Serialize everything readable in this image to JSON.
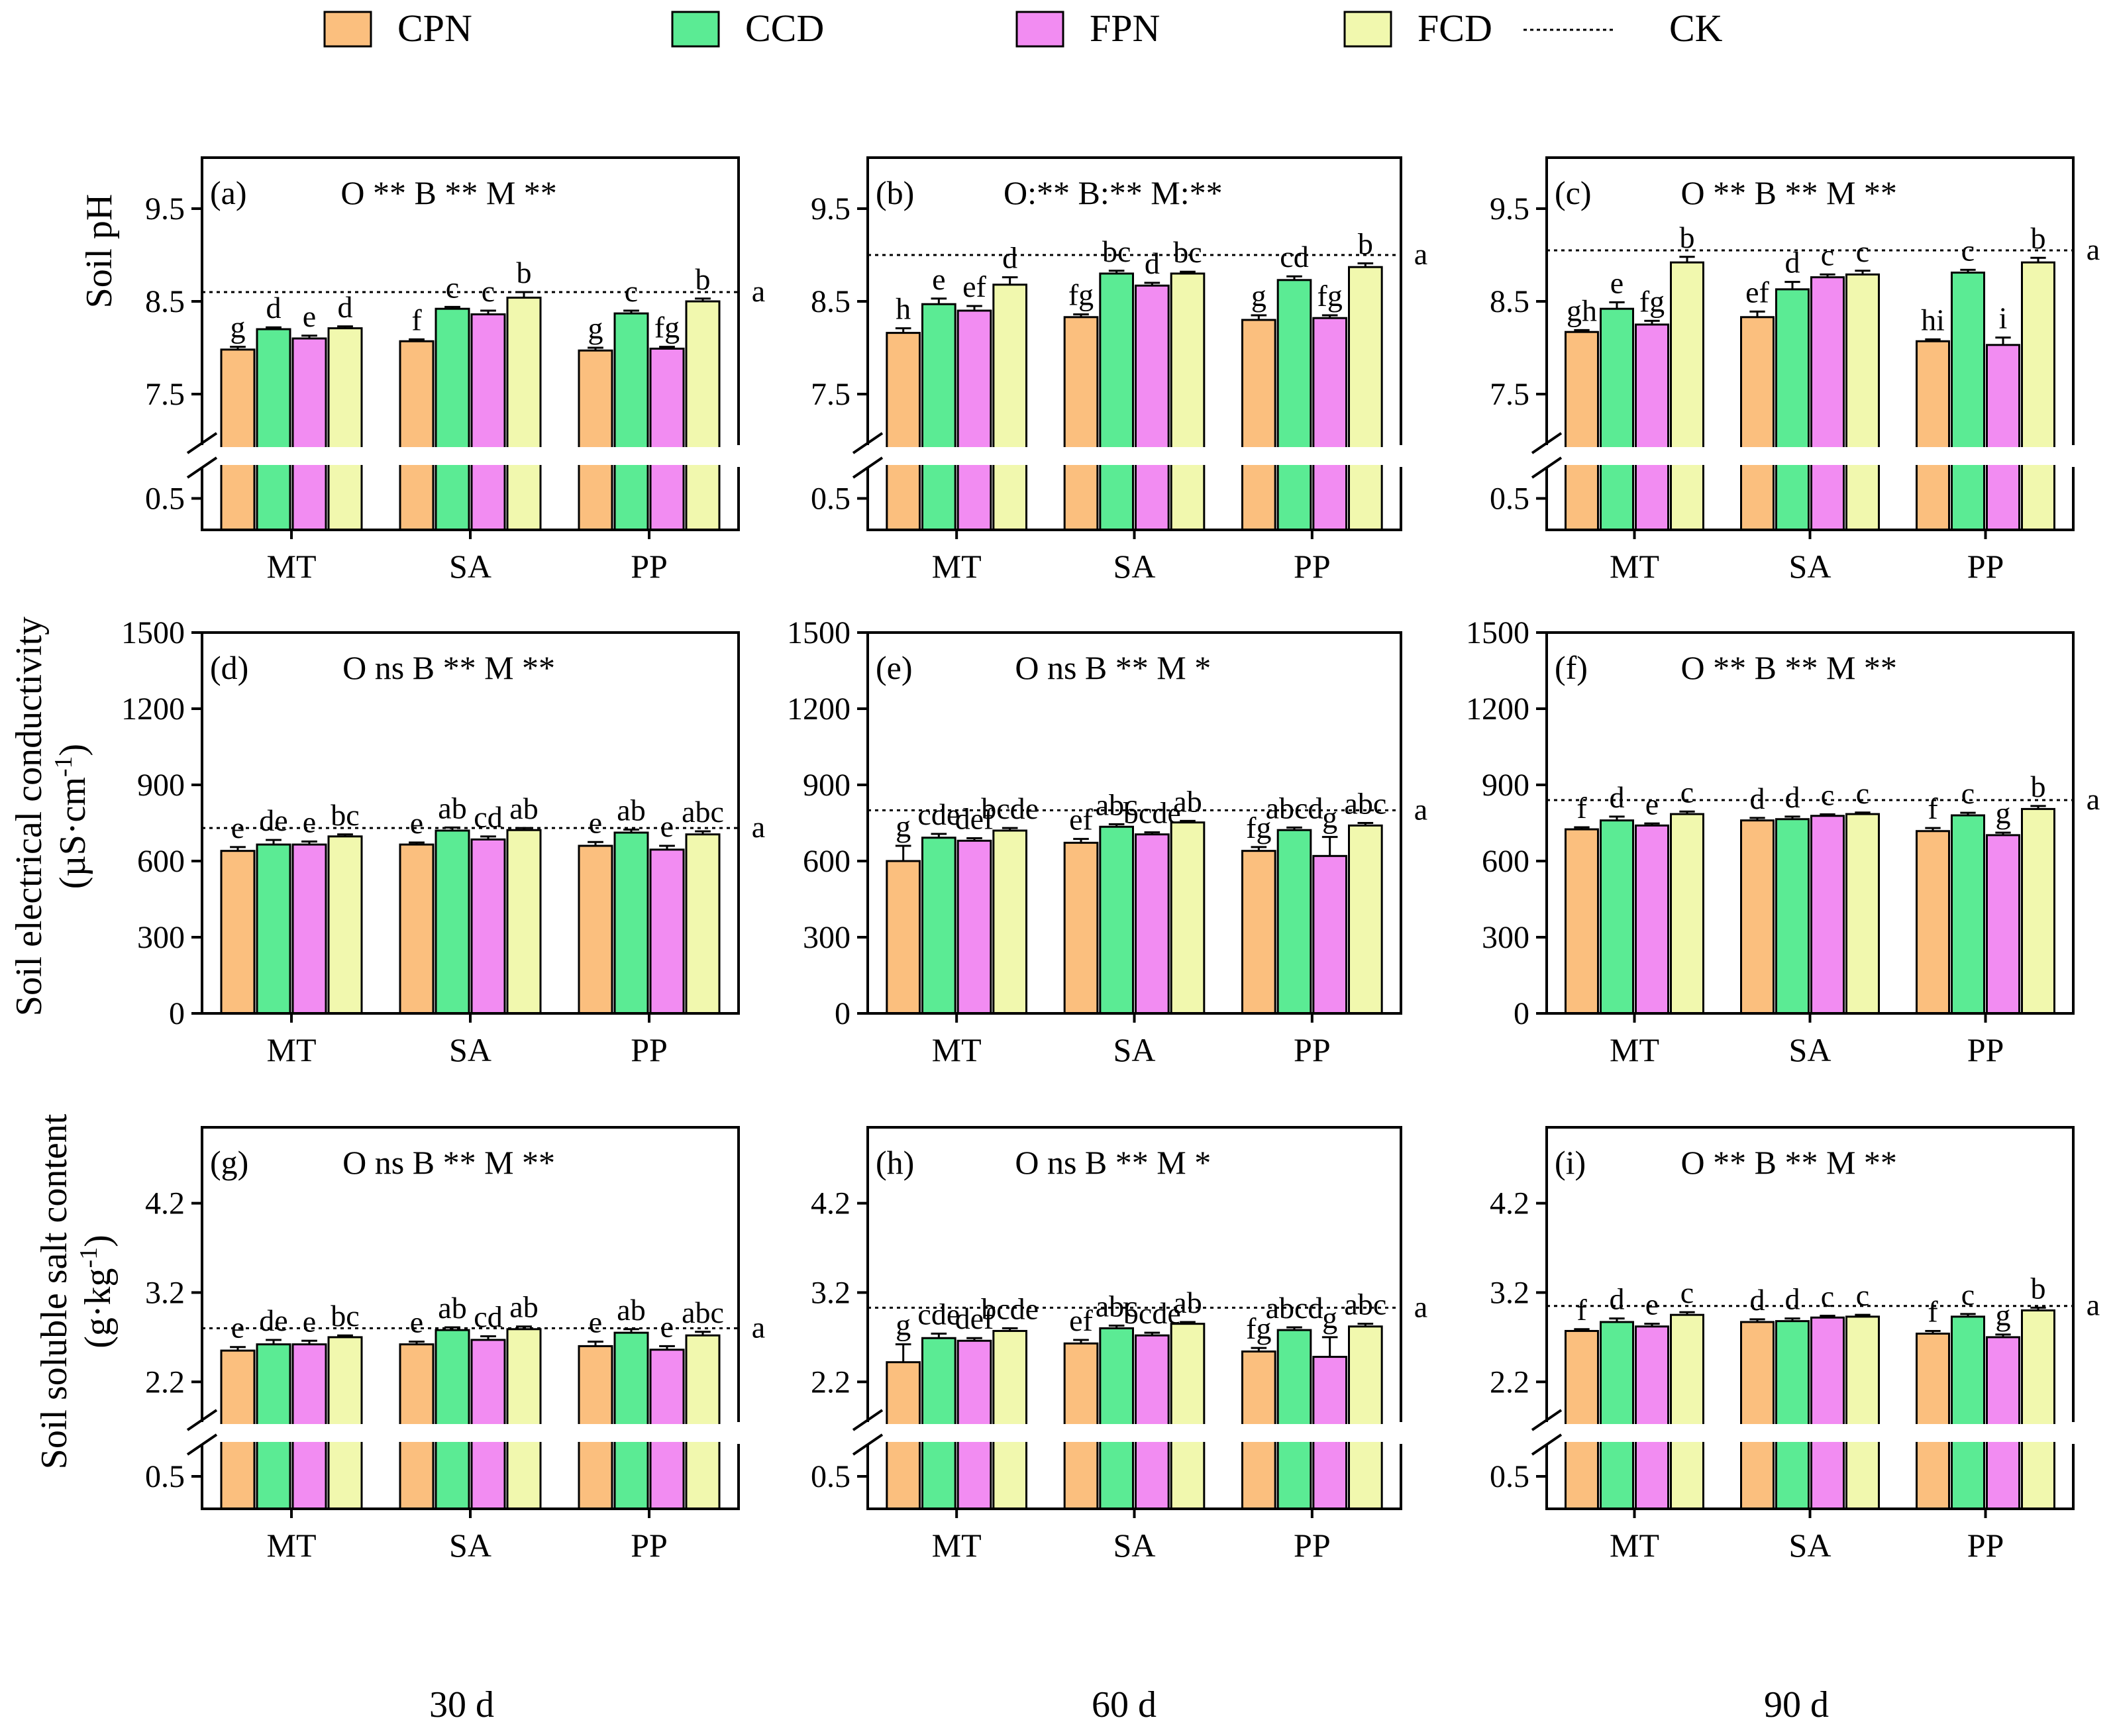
{
  "legend": {
    "items": [
      {
        "label": "CPN",
        "color": "#FBBF7E",
        "kind": "box"
      },
      {
        "label": "CCD",
        "color": "#5BEB94",
        "kind": "box"
      },
      {
        "label": "FPN",
        "color": "#F28CF2",
        "kind": "box"
      },
      {
        "label": "FCD",
        "color": "#F1F8AE",
        "kind": "box"
      },
      {
        "label": "CK",
        "color": "#000000",
        "kind": "dotted-line"
      }
    ]
  },
  "time_labels": [
    "30 d",
    "60 d",
    "90 d"
  ],
  "row_ylabels": [
    {
      "line1": "Soil pH",
      "line2": ""
    },
    {
      "line1": "Soil electrical conductivity",
      "line2": "(µS·cm",
      "sup": "-1",
      "tail": ")"
    },
    {
      "line1": "Soil soluble salt content",
      "line2": "(g·kg",
      "sup": "-1",
      "tail": ")"
    }
  ],
  "chart_data": [
    {
      "type": "bar",
      "panel": "(a)",
      "row": 0,
      "col": 0,
      "significance": "O ** B ** M **",
      "categories": [
        "MT",
        "SA",
        "PP"
      ],
      "series": [
        {
          "name": "CPN",
          "values": [
            7.98,
            8.07,
            7.97
          ],
          "errors": [
            0.03,
            0.02,
            0.03
          ],
          "letters": [
            "g",
            "f",
            "g"
          ]
        },
        {
          "name": "CCD",
          "values": [
            8.2,
            8.42,
            8.37
          ],
          "errors": [
            0.02,
            0.02,
            0.03
          ],
          "letters": [
            "d",
            "c",
            "c"
          ]
        },
        {
          "name": "FPN",
          "values": [
            8.1,
            8.36,
            7.99
          ],
          "errors": [
            0.03,
            0.04,
            0.02
          ],
          "letters": [
            "e",
            "c",
            "fg"
          ]
        },
        {
          "name": "FCD",
          "values": [
            8.21,
            8.54,
            8.5
          ],
          "errors": [
            0.02,
            0.06,
            0.03
          ],
          "letters": [
            "d",
            "b",
            "b"
          ]
        }
      ],
      "ck": {
        "value": 8.6,
        "letter": "a"
      },
      "axis": {
        "lower_range": [
          0,
          1
        ],
        "lower_ticks": [
          0.5
        ],
        "upper_range": [
          6.95,
          10.05
        ],
        "upper_ticks": [
          7.5,
          8.5,
          9.5
        ]
      }
    },
    {
      "type": "bar",
      "panel": "(b)",
      "row": 0,
      "col": 1,
      "significance": "O:** B:** M:**",
      "categories": [
        "MT",
        "SA",
        "PP"
      ],
      "series": [
        {
          "name": "CPN",
          "values": [
            8.16,
            8.33,
            8.3
          ],
          "errors": [
            0.05,
            0.03,
            0.05
          ],
          "letters": [
            "h",
            "fg",
            "g"
          ]
        },
        {
          "name": "CCD",
          "values": [
            8.47,
            8.8,
            8.73
          ],
          "errors": [
            0.06,
            0.03,
            0.04
          ],
          "letters": [
            "e",
            "bc",
            "cd"
          ]
        },
        {
          "name": "FPN",
          "values": [
            8.4,
            8.67,
            8.32
          ],
          "errors": [
            0.05,
            0.03,
            0.03
          ],
          "letters": [
            "ef",
            "d",
            "fg"
          ]
        },
        {
          "name": "FCD",
          "values": [
            8.68,
            8.8,
            8.87
          ],
          "errors": [
            0.08,
            0.02,
            0.04
          ],
          "letters": [
            "d",
            "bc",
            "b"
          ]
        }
      ],
      "ck": {
        "value": 9.0,
        "letter": "a"
      },
      "axis": {
        "lower_range": [
          0,
          1
        ],
        "lower_ticks": [
          0.5
        ],
        "upper_range": [
          6.95,
          10.05
        ],
        "upper_ticks": [
          7.5,
          8.5,
          9.5
        ]
      }
    },
    {
      "type": "bar",
      "panel": "(c)",
      "row": 0,
      "col": 2,
      "significance": "O ** B ** M **",
      "categories": [
        "MT",
        "SA",
        "PP"
      ],
      "series": [
        {
          "name": "CPN",
          "values": [
            8.17,
            8.33,
            8.07
          ],
          "errors": [
            0.02,
            0.06,
            0.02
          ],
          "letters": [
            "gh",
            "ef",
            "hi"
          ]
        },
        {
          "name": "CCD",
          "values": [
            8.42,
            8.63,
            8.81
          ],
          "errors": [
            0.07,
            0.08,
            0.03
          ],
          "letters": [
            "e",
            "d",
            "c"
          ]
        },
        {
          "name": "FPN",
          "values": [
            8.25,
            8.76,
            8.03
          ],
          "errors": [
            0.04,
            0.03,
            0.08
          ],
          "letters": [
            "fg",
            "c",
            "i"
          ]
        },
        {
          "name": "FCD",
          "values": [
            8.92,
            8.79,
            8.92
          ],
          "errors": [
            0.06,
            0.04,
            0.05
          ],
          "letters": [
            "b",
            "c",
            "b"
          ]
        }
      ],
      "ck": {
        "value": 9.05,
        "letter": "a"
      },
      "axis": {
        "lower_range": [
          0,
          1
        ],
        "lower_ticks": [
          0.5
        ],
        "upper_range": [
          6.95,
          10.05
        ],
        "upper_ticks": [
          7.5,
          8.5,
          9.5
        ]
      }
    },
    {
      "type": "bar",
      "panel": "(d)",
      "row": 1,
      "col": 0,
      "significance": "O ns  B **  M **",
      "categories": [
        "MT",
        "SA",
        "PP"
      ],
      "series": [
        {
          "name": "CPN",
          "values": [
            640,
            665,
            660
          ],
          "errors": [
            15,
            8,
            15
          ],
          "letters": [
            "e",
            "e",
            "e"
          ]
        },
        {
          "name": "CCD",
          "values": [
            665,
            720,
            712
          ],
          "errors": [
            18,
            12,
            12
          ],
          "letters": [
            "de",
            "ab",
            "ab"
          ]
        },
        {
          "name": "FPN",
          "values": [
            665,
            685,
            645
          ],
          "errors": [
            12,
            12,
            15
          ],
          "letters": [
            "e",
            "cd",
            "e"
          ]
        },
        {
          "name": "FCD",
          "values": [
            697,
            722,
            705
          ],
          "errors": [
            8,
            8,
            12
          ],
          "letters": [
            "bc",
            "ab",
            "abc"
          ]
        }
      ],
      "ck": {
        "value": 730,
        "letter": "a"
      },
      "axis": {
        "range": [
          0,
          1500
        ],
        "ticks": [
          0,
          300,
          600,
          900,
          1200,
          1500
        ]
      }
    },
    {
      "type": "bar",
      "panel": "(e)",
      "row": 1,
      "col": 1,
      "significance": "O ns  B **  M *",
      "categories": [
        "MT",
        "SA",
        "PP"
      ],
      "series": [
        {
          "name": "CPN",
          "values": [
            600,
            672,
            640
          ],
          "errors": [
            60,
            15,
            15
          ],
          "letters": [
            "g",
            "ef",
            "fg"
          ]
        },
        {
          "name": "CCD",
          "values": [
            692,
            735,
            722
          ],
          "errors": [
            15,
            10,
            10
          ],
          "letters": [
            "cde",
            "abc",
            "abcd"
          ]
        },
        {
          "name": "FPN",
          "values": [
            680,
            705,
            620
          ],
          "errors": [
            10,
            8,
            75
          ],
          "letters": [
            "def",
            "bcde",
            "g"
          ]
        },
        {
          "name": "FCD",
          "values": [
            720,
            752,
            740
          ],
          "errors": [
            10,
            6,
            10
          ],
          "letters": [
            "bcde",
            "ab",
            "abc"
          ]
        }
      ],
      "ck": {
        "value": 800,
        "letter": "a"
      },
      "axis": {
        "range": [
          0,
          1500
        ],
        "ticks": [
          0,
          300,
          600,
          900,
          1200,
          1500
        ]
      }
    },
    {
      "type": "bar",
      "panel": "(f)",
      "row": 1,
      "col": 2,
      "significance": "O **  B **  M **",
      "categories": [
        "MT",
        "SA",
        "PP"
      ],
      "series": [
        {
          "name": "CPN",
          "values": [
            725,
            760,
            718
          ],
          "errors": [
            8,
            10,
            12
          ],
          "letters": [
            "f",
            "d",
            "f"
          ]
        },
        {
          "name": "CCD",
          "values": [
            760,
            765,
            780
          ],
          "errors": [
            15,
            10,
            10
          ],
          "letters": [
            "d",
            "d",
            "c"
          ]
        },
        {
          "name": "FPN",
          "values": [
            740,
            778,
            702
          ],
          "errors": [
            8,
            6,
            10
          ],
          "letters": [
            "e",
            "c",
            "g"
          ]
        },
        {
          "name": "FCD",
          "values": [
            785,
            785,
            805
          ],
          "errors": [
            10,
            6,
            12
          ],
          "letters": [
            "c",
            "c",
            "b"
          ]
        }
      ],
      "ck": {
        "value": 840,
        "letter": "a"
      },
      "axis": {
        "range": [
          0,
          1500
        ],
        "ticks": [
          0,
          300,
          600,
          900,
          1200,
          1500
        ]
      }
    },
    {
      "type": "bar",
      "panel": "(g)",
      "row": 2,
      "col": 0,
      "significance": "O ns  B **  M **",
      "categories": [
        "MT",
        "SA",
        "PP"
      ],
      "series": [
        {
          "name": "CPN",
          "values": [
            2.55,
            2.62,
            2.6
          ],
          "errors": [
            0.04,
            0.03,
            0.05
          ],
          "letters": [
            "e",
            "e",
            "e"
          ]
        },
        {
          "name": "CCD",
          "values": [
            2.62,
            2.78,
            2.75
          ],
          "errors": [
            0.05,
            0.03,
            0.04
          ],
          "letters": [
            "de",
            "ab",
            "ab"
          ]
        },
        {
          "name": "FPN",
          "values": [
            2.62,
            2.67,
            2.56
          ],
          "errors": [
            0.04,
            0.04,
            0.04
          ],
          "letters": [
            "e",
            "cd",
            "e"
          ]
        },
        {
          "name": "FCD",
          "values": [
            2.7,
            2.79,
            2.72
          ],
          "errors": [
            0.02,
            0.03,
            0.04
          ],
          "letters": [
            "bc",
            "ab",
            "abc"
          ]
        }
      ],
      "ck": {
        "value": 2.8,
        "letter": "a"
      },
      "axis": {
        "lower_range": [
          0,
          1
        ],
        "lower_ticks": [
          0.5
        ],
        "upper_range": [
          1.75,
          5.05
        ],
        "upper_ticks": [
          2.2,
          3.2,
          4.2
        ]
      }
    },
    {
      "type": "bar",
      "panel": "(h)",
      "row": 2,
      "col": 1,
      "significance": "O ns  B **  M *",
      "categories": [
        "MT",
        "SA",
        "PP"
      ],
      "series": [
        {
          "name": "CPN",
          "values": [
            2.42,
            2.63,
            2.54
          ],
          "errors": [
            0.2,
            0.04,
            0.04
          ],
          "letters": [
            "g",
            "ef",
            "fg"
          ]
        },
        {
          "name": "CCD",
          "values": [
            2.69,
            2.8,
            2.78
          ],
          "errors": [
            0.05,
            0.03,
            0.03
          ],
          "letters": [
            "cde",
            "abc",
            "abcd"
          ]
        },
        {
          "name": "FPN",
          "values": [
            2.66,
            2.72,
            2.48
          ],
          "errors": [
            0.03,
            0.03,
            0.22
          ],
          "letters": [
            "def",
            "bcde",
            "g"
          ]
        },
        {
          "name": "FCD",
          "values": [
            2.77,
            2.85,
            2.82
          ],
          "errors": [
            0.03,
            0.02,
            0.03
          ],
          "letters": [
            "bcde",
            "ab",
            "abc"
          ]
        }
      ],
      "ck": {
        "value": 3.03,
        "letter": "a"
      },
      "axis": {
        "lower_range": [
          0,
          1
        ],
        "lower_ticks": [
          0.5
        ],
        "upper_range": [
          1.75,
          5.05
        ],
        "upper_ticks": [
          2.2,
          3.2,
          4.2
        ]
      }
    },
    {
      "type": "bar",
      "panel": "(i)",
      "row": 2,
      "col": 2,
      "significance": "O **  B **  M **",
      "categories": [
        "MT",
        "SA",
        "PP"
      ],
      "series": [
        {
          "name": "CPN",
          "values": [
            2.77,
            2.87,
            2.74
          ],
          "errors": [
            0.02,
            0.03,
            0.03
          ],
          "letters": [
            "f",
            "d",
            "f"
          ]
        },
        {
          "name": "CCD",
          "values": [
            2.87,
            2.88,
            2.93
          ],
          "errors": [
            0.04,
            0.03,
            0.03
          ],
          "letters": [
            "d",
            "d",
            "c"
          ]
        },
        {
          "name": "FPN",
          "values": [
            2.82,
            2.92,
            2.7
          ],
          "errors": [
            0.03,
            0.02,
            0.03
          ],
          "letters": [
            "e",
            "c",
            "g"
          ]
        },
        {
          "name": "FCD",
          "values": [
            2.95,
            2.93,
            3.0
          ],
          "errors": [
            0.03,
            0.02,
            0.03
          ],
          "letters": [
            "c",
            "c",
            "b"
          ]
        }
      ],
      "ck": {
        "value": 3.05,
        "letter": "a"
      },
      "axis": {
        "lower_range": [
          0,
          1
        ],
        "lower_ticks": [
          0.5
        ],
        "upper_range": [
          1.75,
          5.05
        ],
        "upper_ticks": [
          2.2,
          3.2,
          4.2
        ]
      }
    }
  ]
}
